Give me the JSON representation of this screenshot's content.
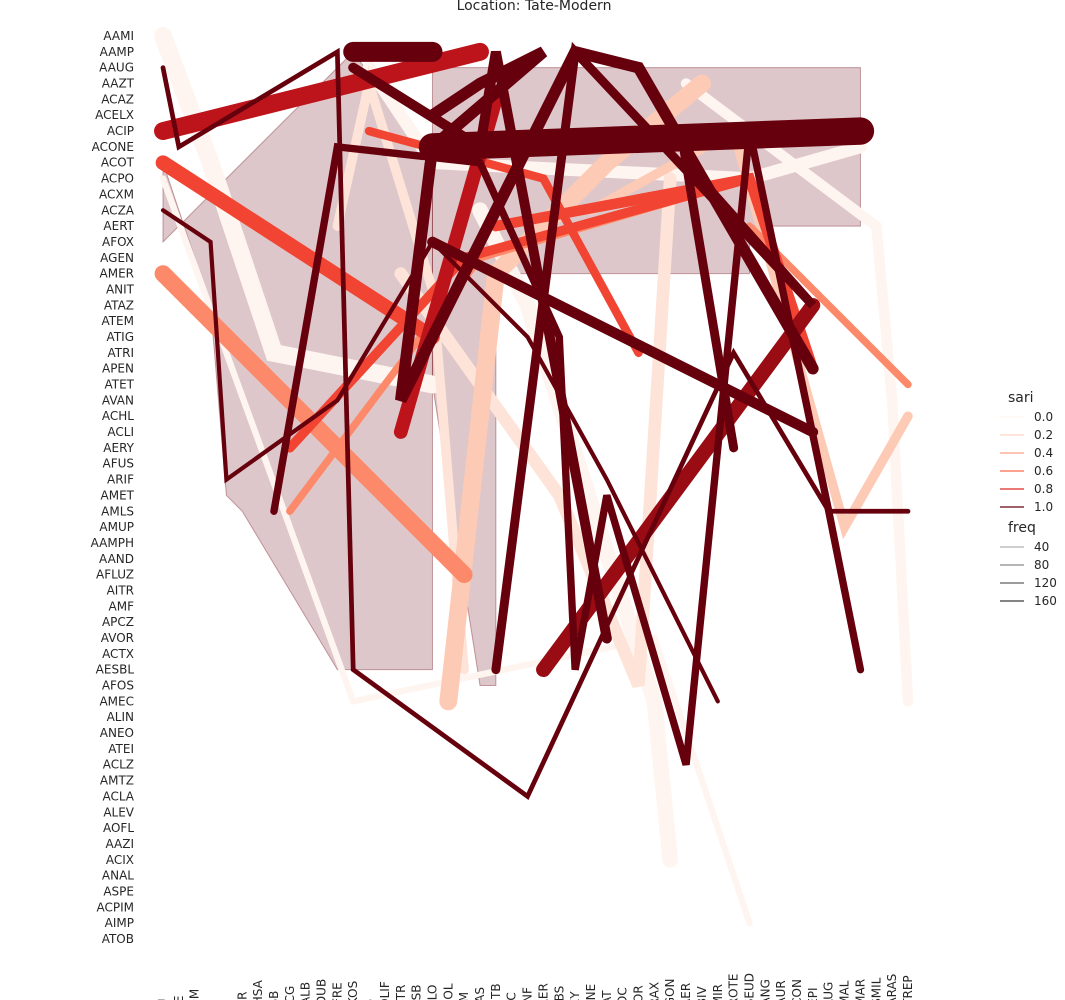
{
  "chart_data": {
    "type": "line",
    "title": "Location: Tate-Modern",
    "x_categories": [
      "ABAU",
      "ACINE",
      "AFROM",
      "AVIR",
      "ACIL",
      "ABCER",
      "AMBHSA",
      "ABHSB",
      "ADISCG",
      "AMCALB",
      "AMCDUB",
      "AMCFRE",
      "AMCKOS",
      "ACNS",
      "AECOLIF",
      "AECSTR",
      "AEEASB",
      "AEECLO",
      "ABECOL",
      "AEFAM",
      "AEEFAS",
      "ABENTB",
      "AENTC",
      "ABHINF",
      "ABXAER",
      "ACLEBS",
      "ACOXY",
      "AKRPNE",
      "AMCAT",
      "AMROC",
      "AMMOR",
      "AMPRAX",
      "AMPGON",
      "AMPAER",
      "AMPBIV",
      "AMPMIR",
      "AMPROTE",
      "AMPSEUD",
      "AMSANG",
      "AMSAUR",
      "AMSCON",
      "AMSEPI",
      "AMSLUG",
      "AMSMAL",
      "AMSMAR",
      "AMSSMIL",
      "AMSARAS",
      "AMSTREP"
    ],
    "y_categories": [
      "AAMI",
      "AAMP",
      "AAUG",
      "AAZT",
      "ACAZ",
      "ACELX",
      "ACIP",
      "ACONE",
      "ACOT",
      "ACPO",
      "ACXM",
      "ACZA",
      "AERT",
      "AFOX",
      "AGEN",
      "AMER",
      "ANIT",
      "ATAZ",
      "ATEM",
      "ATIG",
      "ATRI",
      "APEN",
      "ATET",
      "AVAN",
      "ACHL",
      "ACLI",
      "AERY",
      "AFUS",
      "ARIF",
      "AMET",
      "AMLS",
      "AMUP",
      "AAMPH",
      "AAND",
      "AFLUZ",
      "AITR",
      "AMF",
      "APCZ",
      "AVOR",
      "ACTX",
      "AESBL",
      "AFOS",
      "AMEC",
      "ALIN",
      "ANEO",
      "ATEI",
      "ACLZ",
      "AMTZ",
      "ACLA",
      "ALEV",
      "AOFL",
      "AAZI",
      "ACIX",
      "ANAL",
      "ASPE",
      "ACPIM",
      "AIMP",
      "ATOB"
    ],
    "legend": {
      "position": "right",
      "hue_title": "sari",
      "hue_entries": [
        {
          "label": "0.0",
          "color": "#fff5f0"
        },
        {
          "label": "0.2",
          "color": "#fdd4c2"
        },
        {
          "label": "0.4",
          "color": "#fca082"
        },
        {
          "label": "0.6",
          "color": "#fb6b4b"
        },
        {
          "label": "0.8",
          "color": "#dd2a25"
        },
        {
          "label": "1.0",
          "color": "#67000d"
        }
      ],
      "size_title": "freq",
      "size_entries": [
        {
          "label": "40",
          "width": 0.6
        },
        {
          "label": "80",
          "width": 0.8
        },
        {
          "label": "120",
          "width": 1.0
        },
        {
          "label": "160",
          "width": 1.2
        }
      ]
    },
    "bands": [
      {
        "points": [
          [
            "ABAU",
            "ACOT"
          ],
          [
            "AVIR",
            "ATAZ"
          ],
          [
            "ACIL",
            "AMET"
          ],
          [
            "ABCER",
            "AMLS"
          ],
          [
            "AMCFRE",
            "AESBL"
          ],
          [
            "AEECLO",
            "AESBL"
          ],
          [
            "AEECLO",
            "ACOT"
          ],
          [
            "AMCKOS",
            "AAMP"
          ],
          [
            "ABAU",
            "AFOX"
          ]
        ],
        "color": "#67000d",
        "opacity": 0.22
      },
      {
        "points": [
          [
            "AEECLO",
            "AAUG"
          ],
          [
            "AMPSEUD",
            "AAUG"
          ],
          [
            "AMSMAR",
            "AAUG"
          ],
          [
            "AMSMAR",
            "AERT"
          ],
          [
            "AMPSEUD",
            "AERT"
          ],
          [
            "AMPSEUD",
            "AMER"
          ],
          [
            "ABENTB",
            "AMER"
          ],
          [
            "ABENTB",
            "AFOS"
          ],
          [
            "AEEFAS",
            "AFOS"
          ],
          [
            "AEECLO",
            "ATET"
          ]
        ],
        "color": "#67000d",
        "opacity": 0.22
      }
    ],
    "series": [
      {
        "sari": 0.0,
        "freq": 170,
        "points": [
          [
            "ABAU",
            "AAMI"
          ],
          [
            "AVIR",
            "ACOT"
          ],
          [
            "ABHSB",
            "ATRI"
          ],
          [
            "AEECLO",
            "ATET"
          ]
        ]
      },
      {
        "sari": 0.0,
        "freq": 150,
        "points": [
          [
            "AEEFAS",
            "ACZA"
          ],
          [
            "ABHINF",
            "ATAZ"
          ],
          [
            "AMPRAX",
            "AMEC"
          ],
          [
            "AMPGON",
            "ACIX"
          ]
        ]
      },
      {
        "sari": 0.0,
        "freq": 120,
        "points": [
          [
            "ACNS",
            "AAUG"
          ],
          [
            "AEECLO",
            "ACOT"
          ],
          [
            "AMPSEUD",
            "ACPO"
          ],
          [
            "AMSMAR",
            "ACONE"
          ]
        ]
      },
      {
        "sari": 0.0,
        "freq": 100,
        "points": [
          [
            "AMPAER",
            "AAZT"
          ],
          [
            "AMSSMIL",
            "AERT"
          ],
          [
            "AMSARAS",
            "AVAN"
          ],
          [
            "AMSTREP",
            "AMEC"
          ]
        ]
      },
      {
        "sari": 0.0,
        "freq": 60,
        "points": [
          [
            "ABAU",
            "ACPO"
          ],
          [
            "AMCKOS",
            "AMEC"
          ],
          [
            "AMPRAX",
            "AVOR"
          ],
          [
            "AMPSEUD",
            "AIMP"
          ]
        ]
      },
      {
        "sari": 0.1,
        "freq": 120,
        "points": [
          [
            "AECSTR",
            "AMER"
          ],
          [
            "ACLEBS",
            "AMET"
          ],
          [
            "AMMOR",
            "AFOS"
          ],
          [
            "AMPGON",
            "ACPO"
          ]
        ]
      },
      {
        "sari": 0.1,
        "freq": 90,
        "points": [
          [
            "AMCFRE",
            "AERT"
          ],
          [
            "ACNS",
            "AAZT"
          ],
          [
            "AEECLO",
            "ANIT"
          ],
          [
            "AEFAM",
            "AESBL"
          ]
        ]
      },
      {
        "sari": 0.2,
        "freq": 170,
        "points": [
          [
            "ABECOL",
            "AMEC"
          ],
          [
            "ABENTB",
            "AMER"
          ],
          [
            "AMCAT",
            "ACOT"
          ],
          [
            "AMPBIV",
            "AAZT"
          ]
        ]
      },
      {
        "sari": 0.2,
        "freq": 90,
        "points": [
          [
            "AKRPNE",
            "ACZA"
          ],
          [
            "AMPROTE",
            "ACIP"
          ],
          [
            "AMSMAL",
            "AMUP"
          ],
          [
            "AMSTREP",
            "ACHL"
          ]
        ]
      },
      {
        "sari": 0.4,
        "freq": 160,
        "points": [
          [
            "ABAU",
            "AMER"
          ],
          [
            "AEFAM",
            "AFLUZ"
          ]
        ]
      },
      {
        "sari": 0.4,
        "freq": 70,
        "points": [
          [
            "ADISCG",
            "AMLS"
          ],
          [
            "AEEFAS",
            "AGEN"
          ],
          [
            "AMPSEUD",
            "ACPO"
          ]
        ]
      },
      {
        "sari": 0.4,
        "freq": 70,
        "points": [
          [
            "AMPSEUD",
            "AERT"
          ],
          [
            "AMSTREP",
            "ATET"
          ]
        ]
      },
      {
        "sari": 0.6,
        "freq": 140,
        "points": [
          [
            "ABAU",
            "ACOT"
          ],
          [
            "AEECLO",
            "ATIG"
          ]
        ]
      },
      {
        "sari": 0.6,
        "freq": 100,
        "points": [
          [
            "ABENTB",
            "AERT"
          ],
          [
            "AMPSEUD",
            "ACPO"
          ],
          [
            "AMSEPI",
            "APEN"
          ]
        ]
      },
      {
        "sari": 0.6,
        "freq": 90,
        "points": [
          [
            "ADISCG",
            "AERY"
          ],
          [
            "AEFAM",
            "AGEN"
          ],
          [
            "AMPSEUD",
            "ACPO"
          ]
        ]
      },
      {
        "sari": 0.6,
        "freq": 80,
        "points": [
          [
            "ACNS",
            "ACIP"
          ],
          [
            "ABXAER",
            "ACPO"
          ],
          [
            "AMMOR",
            "ATRI"
          ]
        ]
      },
      {
        "sari": 0.8,
        "freq": 170,
        "points": [
          [
            "ABAU",
            "ACIP"
          ],
          [
            "AEEFAS",
            "AAMP"
          ]
        ]
      },
      {
        "sari": 0.8,
        "freq": 130,
        "points": [
          [
            "AECSTR",
            "ACLI"
          ],
          [
            "ABENTB",
            "ACAZ"
          ]
        ]
      },
      {
        "sari": 0.9,
        "freq": 140,
        "points": [
          [
            "ABXAER",
            "AESBL"
          ],
          [
            "AMSEPI",
            "ATAZ"
          ]
        ]
      },
      {
        "sari": 1.0,
        "freq": 260,
        "points": [
          [
            "AEECLO",
            "ACONE"
          ],
          [
            "AMSMAR",
            "ACIP"
          ]
        ]
      },
      {
        "sari": 1.0,
        "freq": 190,
        "points": [
          [
            "AMCKOS",
            "AAMP"
          ],
          [
            "AEECLO",
            "AAMP"
          ]
        ]
      },
      {
        "sari": 1.0,
        "freq": 110,
        "points": [
          [
            "AEECLO",
            "ACELX"
          ],
          [
            "AEEFAS",
            "AAZT"
          ],
          [
            "ABXAER",
            "AAMP"
          ],
          [
            "AEECLO",
            "ACONE"
          ],
          [
            "AECSTR",
            "AVAN"
          ],
          [
            "ACOXY",
            "AAMP"
          ],
          [
            "AMMOR",
            "AAUG"
          ],
          [
            "AMSEPI",
            "APEN"
          ]
        ]
      },
      {
        "sari": 1.0,
        "freq": 100,
        "points": [
          [
            "AEECLO",
            "AFOX"
          ],
          [
            "AMSEPI",
            "ACLI"
          ]
        ]
      },
      {
        "sari": 1.0,
        "freq": 95,
        "points": [
          [
            "AMCKOS",
            "AAUG"
          ],
          [
            "AEEFAS",
            "ACONE"
          ],
          [
            "ABENTB",
            "AAMP"
          ],
          [
            "AMCAT",
            "AMMOR"
          ],
          [
            "AMMOR",
            "AESBL"
          ]
        ]
      },
      {
        "sari": 1.0,
        "freq": 85,
        "points": [
          [
            "ABENTB",
            "AESBL"
          ],
          [
            "ACOXY",
            "AAMP"
          ],
          [
            "AMSEPI",
            "ATAZ"
          ],
          [
            "AMPAER",
            "ACOT"
          ],
          [
            "AMPROTE",
            "AERY"
          ]
        ]
      },
      {
        "sari": 1.0,
        "freq": 70,
        "points": [
          [
            "ABHSB",
            "AMLS"
          ],
          [
            "AMCFRE",
            "ACONE"
          ],
          [
            "AEEFAS",
            "ACOT"
          ],
          [
            "ACLEBS",
            "ATIG"
          ],
          [
            "ACOXY",
            "AESBL"
          ],
          [
            "AMCAT",
            "AMET"
          ],
          [
            "AMPAER",
            "ACLZ"
          ],
          [
            "AMPSEUD",
            "ACIP"
          ],
          [
            "AMSLUG",
            "AMLS"
          ],
          [
            "AMSMAR",
            "AESBL"
          ]
        ]
      },
      {
        "sari": 1.0,
        "freq": 45,
        "points": [
          [
            "ABAU",
            "AAUG"
          ],
          [
            "ACINE",
            "ACONE"
          ],
          [
            "AMCFRE",
            "AAMP"
          ],
          [
            "AMCKOS",
            "AESBL"
          ],
          [
            "ABHINF",
            "ACLA"
          ],
          [
            "AMPROTE",
            "ATRI"
          ],
          [
            "AMSLUG",
            "AMLS"
          ],
          [
            "AMSTREP",
            "AMLS"
          ]
        ]
      },
      {
        "sari": 1.0,
        "freq": 40,
        "points": [
          [
            "ABAU",
            "ACZA"
          ],
          [
            "AVIR",
            "AFOX"
          ],
          [
            "ACIL",
            "ARIF"
          ],
          [
            "AMCFRE",
            "AVAN"
          ],
          [
            "AEECLO",
            "AFOX"
          ],
          [
            "ABHINF",
            "ATIG"
          ],
          [
            "AMCAT",
            "ARIF"
          ],
          [
            "AMPMIR",
            "AMEC"
          ]
        ]
      }
    ]
  }
}
